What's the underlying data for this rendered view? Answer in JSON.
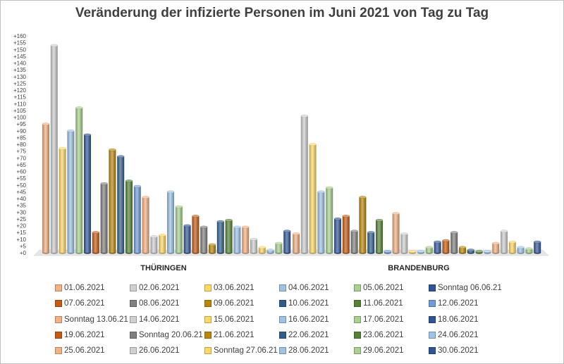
{
  "chart_data": {
    "type": "bar",
    "title": "Veränderung der infizierte Personen im Juni 2021 von Tag zu Tag",
    "categories": [
      "THÜRINGEN",
      "BRANDENBURG"
    ],
    "ylim": [
      0,
      160
    ],
    "ytick_step": 5,
    "ytick_prefix": "+",
    "series": [
      {
        "name": "01.06.2021",
        "color": "#f4b183",
        "values": [
          95,
          14
        ]
      },
      {
        "name": "02.06.2021",
        "color": "#d0d0d0",
        "values": [
          153,
          101
        ]
      },
      {
        "name": "03.06.2021",
        "color": "#ffd966",
        "values": [
          77,
          80
        ]
      },
      {
        "name": "04.06.2021",
        "color": "#9dc3e6",
        "values": [
          90,
          45
        ]
      },
      {
        "name": "05.06.2021",
        "color": "#a9d18e",
        "values": [
          107,
          48
        ]
      },
      {
        "name": "Sonntag 06.06.21",
        "color": "#2f5597",
        "values": [
          87,
          25
        ]
      },
      {
        "name": "07.06.2021",
        "color": "#c55a11",
        "values": [
          15,
          27
        ]
      },
      {
        "name": "08.06.2021",
        "color": "#7f7f7f",
        "values": [
          51,
          16
        ]
      },
      {
        "name": "09.06.2021",
        "color": "#b8860b",
        "values": [
          76,
          41
        ]
      },
      {
        "name": "10.06.2021",
        "color": "#2e5d8a",
        "values": [
          71,
          15
        ]
      },
      {
        "name": "11.06.2021",
        "color": "#548235",
        "values": [
          53,
          24
        ]
      },
      {
        "name": "12.06.2021",
        "color": "#6f9bd8",
        "values": [
          49,
          1
        ]
      },
      {
        "name": "Sonntag 13.06.21",
        "color": "#f4b183",
        "values": [
          41,
          29
        ]
      },
      {
        "name": "14.06.2021",
        "color": "#d0d0d0",
        "values": [
          12,
          14
        ]
      },
      {
        "name": "15.06.2021",
        "color": "#ffd966",
        "values": [
          13,
          1
        ]
      },
      {
        "name": "16.06.2021",
        "color": "#9dc3e6",
        "values": [
          45,
          1
        ]
      },
      {
        "name": "17.06.2021",
        "color": "#a9d18e",
        "values": [
          34,
          4
        ]
      },
      {
        "name": "18.06.2021",
        "color": "#2f5597",
        "values": [
          20,
          8
        ]
      },
      {
        "name": "19.06.2021",
        "color": "#c55a11",
        "values": [
          27,
          9
        ]
      },
      {
        "name": "Sonntag 20.06.21",
        "color": "#7f7f7f",
        "values": [
          19,
          15
        ]
      },
      {
        "name": "21.06.2021",
        "color": "#b8860b",
        "values": [
          6,
          4
        ]
      },
      {
        "name": "22.06.2021",
        "color": "#2e5d8a",
        "values": [
          23,
          2
        ]
      },
      {
        "name": "23.06.2021",
        "color": "#548235",
        "values": [
          24,
          1
        ]
      },
      {
        "name": "24.06.2021",
        "color": "#9dc3e6",
        "values": [
          19,
          1
        ]
      },
      {
        "name": "25.06.2021",
        "color": "#f4b183",
        "values": [
          19,
          7
        ]
      },
      {
        "name": "26.06.2021",
        "color": "#d0d0d0",
        "values": [
          10,
          16
        ]
      },
      {
        "name": "Sonntag 27.06.21",
        "color": "#ffd966",
        "values": [
          4,
          8
        ]
      },
      {
        "name": "28.06.2021",
        "color": "#9dc3e6",
        "values": [
          2,
          4
        ]
      },
      {
        "name": "29.06.2021",
        "color": "#a9d18e",
        "values": [
          7,
          3
        ]
      },
      {
        "name": "30.06.2021",
        "color": "#2f5597",
        "values": [
          16,
          8
        ]
      }
    ]
  }
}
